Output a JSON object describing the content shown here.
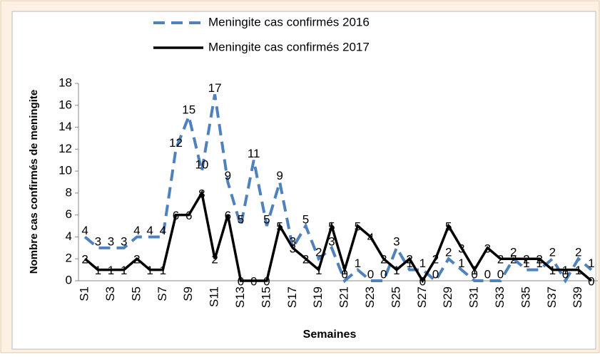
{
  "chart_data": {
    "type": "line",
    "y_label": "Nombre cas confirmés de meningite",
    "x_label": "Semaines",
    "categories": [
      "S1",
      null,
      "S3",
      null,
      "S5",
      null,
      "S7",
      null,
      "S9",
      null,
      "S11",
      null,
      "S13",
      null,
      "S15",
      null,
      "S17",
      null,
      "S19",
      null,
      "S21",
      null,
      "S23",
      null,
      "S25",
      null,
      "S27",
      null,
      "S29",
      null,
      "S31",
      null,
      "S33",
      null,
      "S35",
      null,
      "S37",
      null,
      "S39",
      null
    ],
    "series": [
      {
        "name": "Meningite cas confirmés 2016",
        "color": "#4f81bd",
        "dashed": true,
        "values": [
          4,
          3,
          3,
          3,
          4,
          4,
          4,
          12,
          15,
          10,
          17,
          9,
          5,
          11,
          5,
          9,
          3,
          5,
          2,
          3,
          0,
          1,
          0,
          0,
          3,
          1,
          1,
          0,
          2,
          1,
          0,
          0,
          0,
          2,
          1,
          1,
          2,
          0,
          2,
          1
        ]
      },
      {
        "name": "Meningite cas confirmés 2017",
        "color": "#000000",
        "dashed": false,
        "values": [
          2,
          1,
          1,
          1,
          2,
          1,
          1,
          6,
          6,
          8,
          2,
          6,
          0,
          0,
          0,
          5,
          3,
          2,
          1,
          5,
          1,
          5,
          4,
          2,
          1,
          2,
          0,
          2,
          5,
          3,
          1,
          3,
          2,
          2,
          2,
          2,
          1,
          1,
          1,
          0
        ]
      }
    ],
    "ylim": [
      0,
      18
    ],
    "yticks": [
      0,
      2,
      4,
      6,
      8,
      10,
      12,
      14,
      16,
      18
    ]
  }
}
